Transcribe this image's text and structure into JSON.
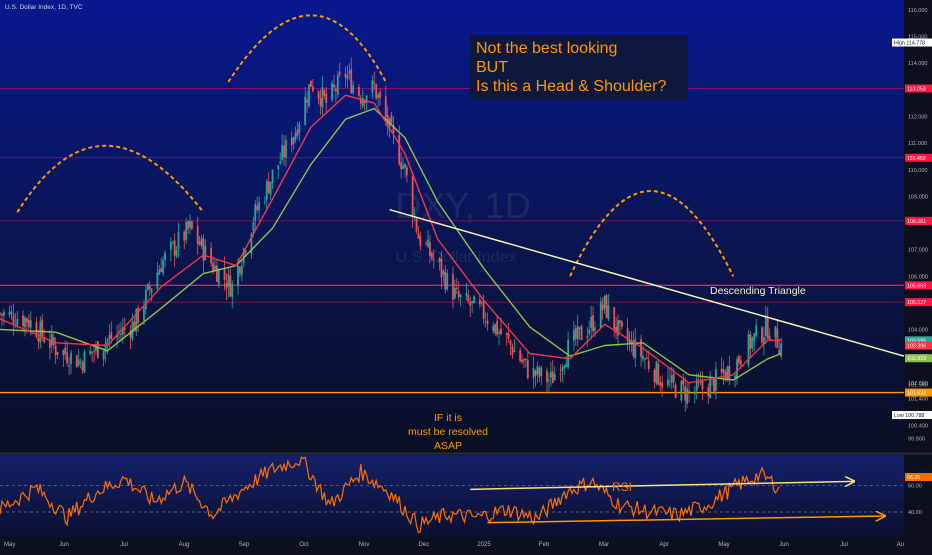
{
  "header": {
    "symbol_line": "U.S. Dollar Index, 1D, TVC"
  },
  "watermark": {
    "ticker": "DXY, 1D",
    "name": "U.S. Dollar Index"
  },
  "colors": {
    "up": "#26a69a",
    "down": "#ef5350",
    "fast_ma": "#f23645",
    "slow_ma": "#8bc34a",
    "annotation": "#ff9800",
    "trendline": "#f5f1b8",
    "rsi_line": "#ff6d00",
    "hline_red": "#ff1744",
    "hline_orange": "#ff9800"
  },
  "annotations": {
    "hs_title": [
      "Not the best looking",
      "BUT",
      "Is this a Head & Shoulder?"
    ],
    "descending_triangle": "Descending Triangle",
    "if_resolved": [
      "IF it is",
      "must be resolved",
      "ASAP"
    ],
    "rsi_label": "RSI"
  },
  "price_axis": {
    "ticks": [
      "116.000",
      "115.000",
      "114.000",
      "113.000",
      "112.000",
      "111.000",
      "110.000",
      "109.000",
      "108.000",
      "107.000",
      "106.000",
      "105.000",
      "104.000",
      "103.000",
      "102.000",
      "101.940",
      "101.400",
      "100.400",
      "99.900"
    ],
    "high_tag": {
      "label": "High",
      "value": "114.778"
    },
    "low_tag": {
      "label": "Low",
      "value": "100.788"
    },
    "level_tags": [
      {
        "value": "113.053",
        "color": "#ff1744"
      },
      {
        "value": "110.450",
        "color": "#ff1744"
      },
      {
        "value": "108.081",
        "color": "#ff1744"
      },
      {
        "value": "105.659",
        "color": "#ff1744"
      },
      {
        "value": "105.027",
        "color": "#ff1744"
      },
      {
        "value": "103.595",
        "color": "#26a69a"
      },
      {
        "value": "103.396",
        "color": "#f23645"
      },
      {
        "value": "102.922",
        "color": "#8bc34a"
      },
      {
        "value": "101.633",
        "color": "#ff9800"
      }
    ]
  },
  "rsi_axis": {
    "top_tag": "66.25",
    "ticks": [
      "60.00",
      "40.00"
    ]
  },
  "time_axis": [
    "May",
    "Jun",
    "Jul",
    "Aug",
    "Sep",
    "Oct",
    "Nov",
    "Dec",
    "2025",
    "Feb",
    "Mar",
    "Apr",
    "May",
    "Jun",
    "Jul",
    "Au"
  ],
  "chart_data": {
    "type": "candlestick",
    "title": "U.S. Dollar Index, 1D, TVC",
    "ylim": [
      99.4,
      116.3
    ],
    "x_range": [
      "2024-05-01",
      "2025-08-15"
    ],
    "horizontal_levels": [
      113.053,
      110.45,
      108.081,
      105.659,
      105.027,
      101.633
    ],
    "price_path": [
      [
        "2024-05-01",
        104.6
      ],
      [
        "2024-05-15",
        104.4
      ],
      [
        "2024-05-30",
        103.3
      ],
      [
        "2024-06-12",
        102.8
      ],
      [
        "2024-06-26",
        103.6
      ],
      [
        "2024-07-10",
        104.2
      ],
      [
        "2024-07-24",
        106.5
      ],
      [
        "2024-08-08",
        107.8
      ],
      [
        "2024-08-20",
        106.4
      ],
      [
        "2024-08-30",
        105.6
      ],
      [
        "2024-09-10",
        108.2
      ],
      [
        "2024-09-20",
        109.8
      ],
      [
        "2024-10-02",
        111.5
      ],
      [
        "2024-10-10",
        113.3
      ],
      [
        "2024-10-18",
        112.5
      ],
      [
        "2024-10-28",
        113.6
      ],
      [
        "2024-11-05",
        112.8
      ],
      [
        "2024-11-12",
        113.1
      ],
      [
        "2024-11-20",
        111.5
      ],
      [
        "2024-11-28",
        110.0
      ],
      [
        "2024-12-05",
        107.5
      ],
      [
        "2024-12-15",
        106.4
      ],
      [
        "2024-12-25",
        105.2
      ],
      [
        "2025-01-08",
        104.6
      ],
      [
        "2025-01-20",
        103.6
      ],
      [
        "2025-02-01",
        102.4
      ],
      [
        "2025-02-12",
        102.1
      ],
      [
        "2025-02-22",
        103.4
      ],
      [
        "2025-03-05",
        104.2
      ],
      [
        "2025-03-12",
        104.9
      ],
      [
        "2025-03-20",
        103.8
      ],
      [
        "2025-04-01",
        103.0
      ],
      [
        "2025-04-12",
        102.0
      ],
      [
        "2025-04-25",
        101.6
      ],
      [
        "2025-05-06",
        101.9
      ],
      [
        "2025-05-18",
        102.6
      ],
      [
        "2025-05-28",
        103.6
      ],
      [
        "2025-06-05",
        104.1
      ],
      [
        "2025-06-12",
        103.4
      ]
    ],
    "fast_ma_path": [
      [
        "2024-05-01",
        104.4
      ],
      [
        "2024-05-30",
        103.5
      ],
      [
        "2024-06-26",
        103.4
      ],
      [
        "2024-07-24",
        105.6
      ],
      [
        "2024-08-15",
        106.8
      ],
      [
        "2024-09-01",
        106.4
      ],
      [
        "2024-09-20",
        108.9
      ],
      [
        "2024-10-10",
        111.6
      ],
      [
        "2024-10-28",
        112.8
      ],
      [
        "2024-11-12",
        112.5
      ],
      [
        "2024-11-28",
        110.6
      ],
      [
        "2024-12-15",
        107.4
      ],
      [
        "2025-01-08",
        105.1
      ],
      [
        "2025-02-01",
        103.1
      ],
      [
        "2025-02-22",
        102.9
      ],
      [
        "2025-03-12",
        104.2
      ],
      [
        "2025-04-01",
        103.3
      ],
      [
        "2025-04-25",
        102.0
      ],
      [
        "2025-05-18",
        102.3
      ],
      [
        "2025-06-05",
        103.6
      ],
      [
        "2025-06-12",
        103.6
      ]
    ],
    "slow_ma_path": [
      [
        "2024-05-01",
        104.0
      ],
      [
        "2024-05-30",
        103.9
      ],
      [
        "2024-06-26",
        103.2
      ],
      [
        "2024-07-24",
        104.8
      ],
      [
        "2024-08-15",
        106.1
      ],
      [
        "2024-09-01",
        106.4
      ],
      [
        "2024-09-20",
        107.8
      ],
      [
        "2024-10-10",
        110.2
      ],
      [
        "2024-10-28",
        111.9
      ],
      [
        "2024-11-12",
        112.3
      ],
      [
        "2024-11-28",
        111.2
      ],
      [
        "2024-12-15",
        108.8
      ],
      [
        "2025-01-08",
        106.3
      ],
      [
        "2025-02-01",
        104.1
      ],
      [
        "2025-02-22",
        103.0
      ],
      [
        "2025-03-12",
        103.4
      ],
      [
        "2025-04-01",
        103.5
      ],
      [
        "2025-04-25",
        102.3
      ],
      [
        "2025-05-18",
        102.1
      ],
      [
        "2025-06-05",
        102.9
      ],
      [
        "2025-06-12",
        103.1
      ]
    ],
    "descending_trendline": [
      [
        "2024-11-20",
        108.5
      ],
      [
        "2025-08-15",
        103.0
      ]
    ],
    "rsi": {
      "ylim": [
        22,
        82
      ],
      "levels": [
        60,
        40
      ],
      "path": [
        [
          "2024-05-01",
          42
        ],
        [
          "2024-05-20",
          58
        ],
        [
          "2024-06-05",
          36
        ],
        [
          "2024-06-20",
          55
        ],
        [
          "2024-07-05",
          65
        ],
        [
          "2024-07-20",
          48
        ],
        [
          "2024-08-05",
          62
        ],
        [
          "2024-08-20",
          38
        ],
        [
          "2024-09-05",
          58
        ],
        [
          "2024-09-20",
          72
        ],
        [
          "2024-10-05",
          80
        ],
        [
          "2024-10-20",
          45
        ],
        [
          "2024-11-05",
          70
        ],
        [
          "2024-11-20",
          55
        ],
        [
          "2024-12-05",
          30
        ],
        [
          "2024-12-20",
          38
        ],
        [
          "2025-01-05",
          36
        ],
        [
          "2025-01-20",
          42
        ],
        [
          "2025-02-05",
          35
        ],
        [
          "2025-02-20",
          55
        ],
        [
          "2025-03-05",
          63
        ],
        [
          "2025-03-20",
          45
        ],
        [
          "2025-04-05",
          40
        ],
        [
          "2025-04-20",
          38
        ],
        [
          "2025-05-05",
          46
        ],
        [
          "2025-05-20",
          60
        ],
        [
          "2025-06-01",
          68
        ],
        [
          "2025-06-08",
          62
        ],
        [
          "2025-06-12",
          55
        ]
      ],
      "trend_upper": [
        [
          "2025-01-01",
          57
        ],
        [
          "2025-07-20",
          63
        ]
      ],
      "trend_lower": [
        [
          "2025-01-10",
          32
        ],
        [
          "2025-08-05",
          37
        ]
      ]
    },
    "arcs": [
      {
        "label": "left shoulder",
        "from": [
          "2024-05-10",
          108.4
        ],
        "peak": [
          "2024-06-25",
          110.9
        ],
        "to": [
          "2024-08-15",
          108.4
        ]
      },
      {
        "label": "head",
        "from": [
          "2024-08-28",
          113.3
        ],
        "peak": [
          "2024-10-10",
          115.8
        ],
        "to": [
          "2024-11-18",
          113.3
        ]
      },
      {
        "label": "right shoulder",
        "from": [
          "2025-02-22",
          106.0
        ],
        "peak": [
          "2025-04-05",
          109.2
        ],
        "to": [
          "2025-05-18",
          106.0
        ]
      }
    ]
  }
}
